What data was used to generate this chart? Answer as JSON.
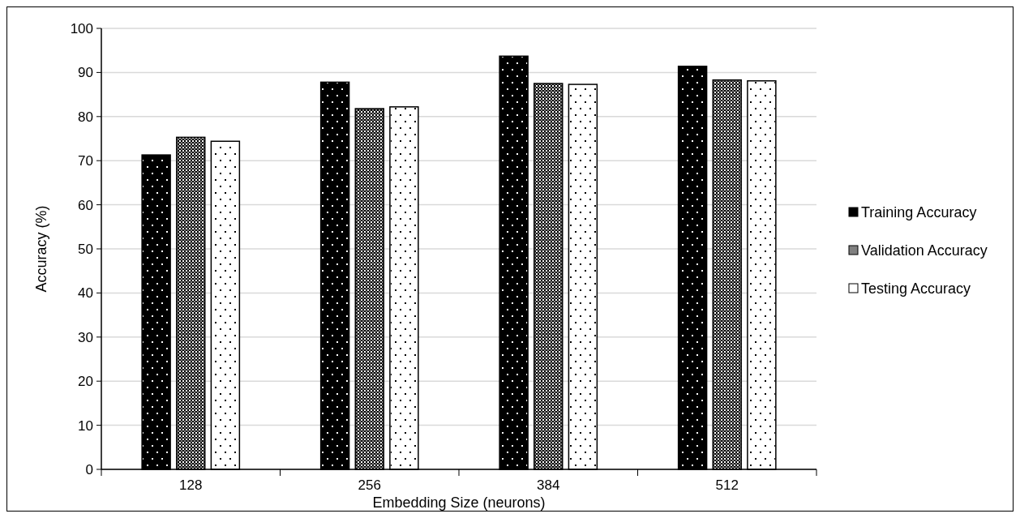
{
  "chart_data": {
    "type": "bar",
    "xlabel": "Embedding Size (neurons)",
    "ylabel": "Accuracy (%)",
    "categories": [
      "128",
      "256",
      "384",
      "512"
    ],
    "series": [
      {
        "name": "Training Accuracy",
        "color": "#000000",
        "values": [
          71.3,
          87.8,
          93.7,
          91.4
        ]
      },
      {
        "name": "Validation Accuracy",
        "color": "#808080",
        "values": [
          75.3,
          81.8,
          87.5,
          88.3
        ]
      },
      {
        "name": "Testing Accuracy",
        "color": "#ffffff",
        "values": [
          74.4,
          82.2,
          87.3,
          88.1
        ]
      }
    ],
    "ylim": [
      0,
      100
    ],
    "yticks": [
      0,
      10,
      20,
      30,
      40,
      50,
      60,
      70,
      80,
      90,
      100
    ],
    "grid": "y",
    "legend": "right"
  }
}
